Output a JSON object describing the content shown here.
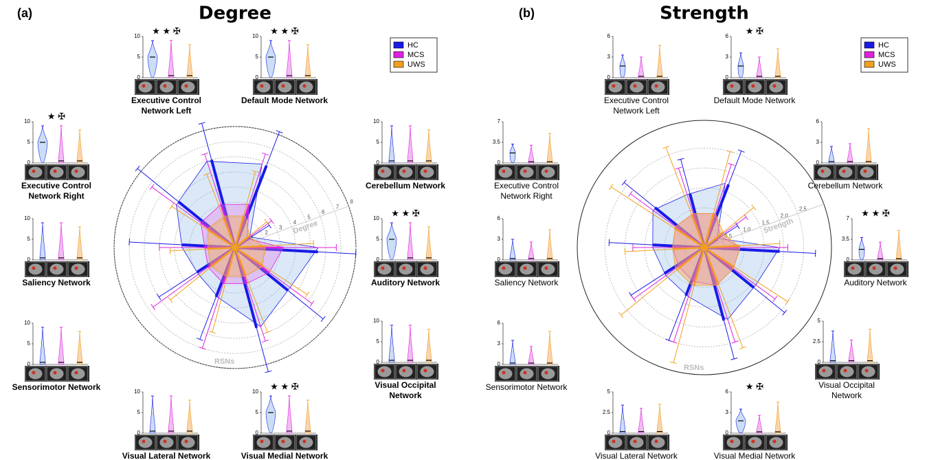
{
  "chart_data": [
    {
      "type": "radar",
      "panel_label": "(a)",
      "title": "Degree",
      "axis_label": "Degree",
      "center_label": "RSNs",
      "categories": [
        [
          "Executive Control",
          "Network Left"
        ],
        [
          "Default Mode Network"
        ],
        [
          "Cerebellum Network"
        ],
        [
          "Auditory Network"
        ],
        [
          "Visual Occipital",
          "Network"
        ],
        [
          "Visual Medial Network"
        ],
        [
          "Visual Lateral Network"
        ],
        [
          "Sensorimotor Network"
        ],
        [
          "Saliency Network"
        ],
        [
          "Executive Control",
          "Network Right"
        ]
      ],
      "rlim": [
        0,
        8
      ],
      "rticks": [
        1,
        2,
        3,
        4,
        5,
        6,
        7,
        8
      ],
      "series": [
        {
          "name": "HC",
          "color": "#1a1ae6",
          "values": [
            6.0,
            5.8,
            1.2,
            5.5,
            4.5,
            5.5,
            3.5,
            3.0,
            3.5,
            4.8
          ],
          "errors": [
            2.5,
            2.4,
            1.5,
            2.5,
            3.0,
            3.0,
            3.0,
            3.0,
            3.5,
            3.5
          ]
        },
        {
          "name": "MCS",
          "color": "#e020e0",
          "values": [
            3.0,
            3.0,
            1.0,
            3.2,
            2.8,
            2.5,
            2.5,
            2.2,
            2.0,
            2.8
          ],
          "errors": [
            3.5,
            3.5,
            2.0,
            3.5,
            3.5,
            4.0,
            4.5,
            4.5,
            3.0,
            4.0
          ]
        },
        {
          "name": "UWS",
          "color": "#f0a020",
          "values": [
            2.2,
            2.2,
            1.2,
            2.0,
            2.2,
            2.0,
            2.0,
            2.0,
            1.8,
            2.2
          ],
          "errors": [
            3.0,
            3.0,
            1.5,
            3.2,
            3.5,
            4.0,
            3.8,
            3.5,
            2.5,
            2.8
          ]
        }
      ],
      "insets": [
        {
          "ylim": [
            0,
            10
          ],
          "yticks": [
            0,
            5,
            10
          ],
          "medians": [
            5,
            0.5,
            0.5
          ],
          "maxima": [
            9,
            9,
            8
          ],
          "significance": "★ ★ ✠"
        },
        {
          "ylim": [
            0,
            10
          ],
          "yticks": [
            0,
            5,
            10
          ],
          "medians": [
            5,
            0.5,
            0.5
          ],
          "maxima": [
            9,
            9,
            8
          ],
          "significance": "★ ★ ✠"
        },
        {
          "ylim": [
            0,
            10
          ],
          "yticks": [
            0,
            5,
            10
          ],
          "medians": [
            0.5,
            0.5,
            0.5
          ],
          "maxima": [
            9,
            9,
            8
          ],
          "significance": null
        },
        {
          "ylim": [
            0,
            10
          ],
          "yticks": [
            0,
            5,
            10
          ],
          "medians": [
            5,
            0.5,
            0.5
          ],
          "maxima": [
            9,
            9,
            8
          ],
          "significance": "★ ★ ✠"
        },
        {
          "ylim": [
            0,
            10
          ],
          "yticks": [
            0,
            5,
            10
          ],
          "medians": [
            0.5,
            0.5,
            0.5
          ],
          "maxima": [
            9,
            9,
            8
          ],
          "significance": null
        },
        {
          "ylim": [
            0,
            10
          ],
          "yticks": [
            0,
            5,
            10
          ],
          "medians": [
            5,
            0.5,
            0.5
          ],
          "maxima": [
            9,
            9,
            8
          ],
          "significance": "★ ★ ✠"
        },
        {
          "ylim": [
            0,
            10
          ],
          "yticks": [
            0,
            5,
            10
          ],
          "medians": [
            0.5,
            0.5,
            0.5
          ],
          "maxima": [
            9,
            9,
            8
          ],
          "significance": null
        },
        {
          "ylim": [
            0,
            10
          ],
          "yticks": [
            0,
            5,
            10
          ],
          "medians": [
            0.5,
            0.5,
            0.5
          ],
          "maxima": [
            9,
            9,
            8
          ],
          "significance": null
        },
        {
          "ylim": [
            0,
            10
          ],
          "yticks": [
            0,
            5,
            10
          ],
          "medians": [
            0.5,
            0.5,
            0.5
          ],
          "maxima": [
            9,
            9,
            8
          ],
          "significance": null
        },
        {
          "ylim": [
            0,
            10
          ],
          "yticks": [
            0,
            5,
            10
          ],
          "medians": [
            5,
            0.5,
            0.5
          ],
          "maxima": [
            9,
            9,
            8
          ],
          "significance": "★ ✠"
        }
      ]
    },
    {
      "type": "radar",
      "panel_label": "(b)",
      "title": "Strength",
      "axis_label": "Strength",
      "center_label": "RSNs",
      "categories": [
        [
          "Executive Control",
          "Network Left"
        ],
        [
          "Default Mode Network"
        ],
        [
          "Cerebellum Network"
        ],
        [
          "Auditory Network"
        ],
        [
          "Visual Occipital",
          "Network"
        ],
        [
          "Visual Medial Network"
        ],
        [
          "Visual Lateral Network"
        ],
        [
          "Sensorimotor Network"
        ],
        [
          "Saliency Network"
        ],
        [
          "Executive Control",
          "Network Right"
        ]
      ],
      "rlim": [
        0,
        3.2
      ],
      "rticks": [
        0.5,
        {
          "value": 1,
          "label": "1.0"
        },
        1.5,
        {
          "value": 2,
          "label": "2.0"
        },
        2.5
      ],
      "series": [
        {
          "name": "HC",
          "color": "#1a1ae6",
          "values": [
            1.4,
            1.7,
            0.4,
            1.9,
            1.6,
            1.9,
            1.3,
            1.2,
            1.3,
            1.6
          ],
          "errors": [
            0.9,
            0.9,
            0.6,
            0.9,
            1.0,
            1.0,
            1.2,
            1.0,
            1.1,
            1.0
          ]
        },
        {
          "name": "MCS",
          "color": "#e020e0",
          "values": [
            0.9,
            0.9,
            0.5,
            0.9,
            0.9,
            1.0,
            0.9,
            0.8,
            0.8,
            0.9
          ],
          "errors": [
            1.2,
            1.3,
            0.8,
            1.2,
            1.3,
            1.5,
            1.6,
            1.4,
            1.0,
            1.4
          ]
        },
        {
          "name": "UWS",
          "color": "#f0a020",
          "values": [
            0.9,
            0.9,
            0.6,
            0.9,
            0.9,
            1.0,
            1.0,
            0.9,
            0.8,
            0.9
          ],
          "errors": [
            1.8,
            1.6,
            1.0,
            1.0,
            1.6,
            1.7,
            2.0,
            1.8,
            1.2,
            1.9
          ]
        }
      ],
      "insets": [
        {
          "ylim": [
            0,
            6
          ],
          "yticks": [
            0,
            3,
            6
          ],
          "medians": [
            1.7,
            0.2,
            0.2
          ],
          "maxima": [
            3.3,
            3.0,
            4.7
          ],
          "significance": null
        },
        {
          "ylim": [
            0,
            6
          ],
          "yticks": [
            0,
            3,
            6
          ],
          "medians": [
            1.7,
            0.2,
            0.2
          ],
          "maxima": [
            3.6,
            3.0,
            4.2
          ],
          "significance": "★ ✠"
        },
        {
          "ylim": [
            0,
            6
          ],
          "yticks": [
            0,
            3,
            6
          ],
          "medians": [
            0.2,
            0.2,
            0.2
          ],
          "maxima": [
            2.4,
            2.8,
            5.0
          ],
          "significance": null
        },
        {
          "ylim": [
            0,
            7
          ],
          "yticks": [
            0,
            3.5,
            7
          ],
          "medians": [
            1.8,
            0.2,
            0.2
          ],
          "maxima": [
            3.8,
            3.0,
            5.0
          ],
          "significance": "★ ★ ✠"
        },
        {
          "ylim": [
            0,
            5
          ],
          "yticks": [
            0,
            2.5,
            5
          ],
          "medians": [
            0.2,
            0.2,
            0.2
          ],
          "maxima": [
            3.8,
            2.7,
            4.0
          ],
          "significance": null
        },
        {
          "ylim": [
            0,
            6
          ],
          "yticks": [
            0,
            3,
            6
          ],
          "medians": [
            1.8,
            0.2,
            0.2
          ],
          "maxima": [
            3.5,
            2.6,
            4.5
          ],
          "significance": "★ ✠"
        },
        {
          "ylim": [
            0,
            5
          ],
          "yticks": [
            0,
            2.5,
            5
          ],
          "medians": [
            0.2,
            0.2,
            0.2
          ],
          "maxima": [
            3.4,
            3.0,
            3.5
          ],
          "significance": null
        },
        {
          "ylim": [
            0,
            6
          ],
          "yticks": [
            0,
            3,
            6
          ],
          "medians": [
            0.2,
            0.2,
            0.2
          ],
          "maxima": [
            3.5,
            2.6,
            4.8
          ],
          "significance": null
        },
        {
          "ylim": [
            0,
            6
          ],
          "yticks": [
            0,
            3,
            6
          ],
          "medians": [
            0.2,
            0.2,
            0.2
          ],
          "maxima": [
            3.0,
            2.6,
            4.4
          ],
          "significance": null
        },
        {
          "ylim": [
            0,
            7
          ],
          "yticks": [
            0,
            3.5,
            7
          ],
          "medians": [
            1.7,
            0.2,
            0.2
          ],
          "maxima": [
            3.2,
            3.0,
            5.0
          ],
          "significance": null
        }
      ]
    }
  ]
}
